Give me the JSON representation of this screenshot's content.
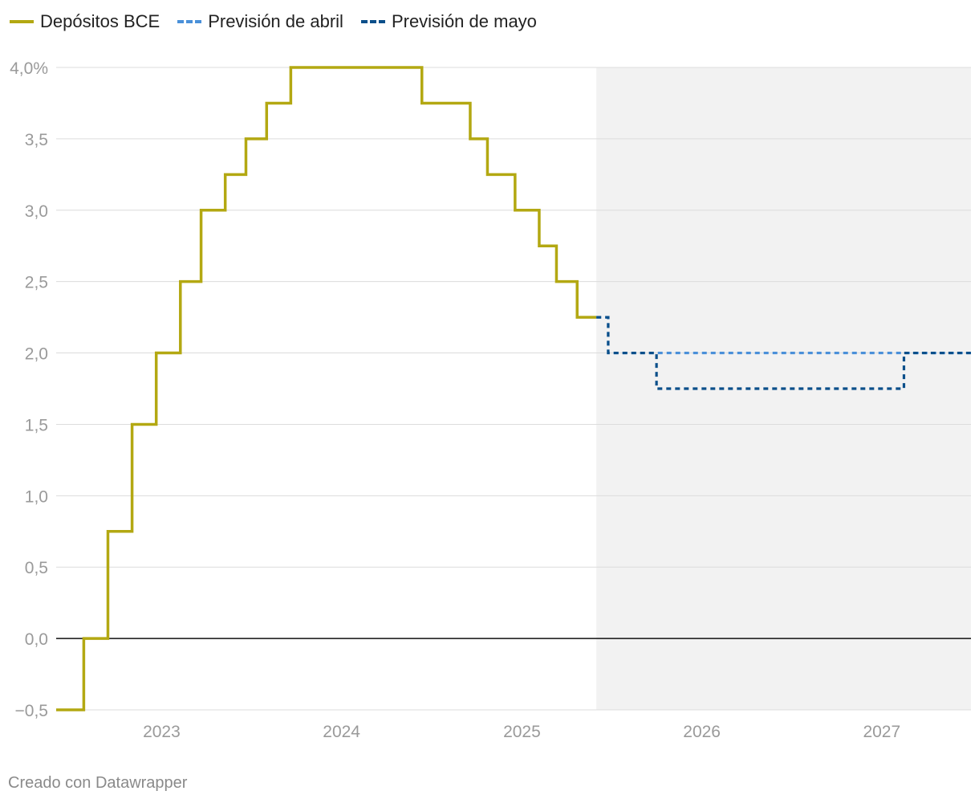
{
  "legend": {
    "items": [
      {
        "label": "Depósitos BCE",
        "color": "#b3a812",
        "style": "solid"
      },
      {
        "label": "Previsión de abril",
        "color": "#4a90d9",
        "style": "dashed"
      },
      {
        "label": "Previsión de mayo",
        "color": "#0b4f8a",
        "style": "dashed"
      }
    ]
  },
  "footer": {
    "credit": "Creado con Datawrapper"
  },
  "chart_data": {
    "type": "line",
    "title": "",
    "xlabel": "",
    "ylabel": "",
    "ylim": [
      -0.5,
      4.0
    ],
    "xlim": [
      "2022-06-01",
      "2027-07-01"
    ],
    "y_ticks": [
      {
        "value": 4.0,
        "label": "4,0%"
      },
      {
        "value": 3.5,
        "label": "3,5"
      },
      {
        "value": 3.0,
        "label": "3,0"
      },
      {
        "value": 2.5,
        "label": "2,5"
      },
      {
        "value": 2.0,
        "label": "2,0"
      },
      {
        "value": 1.5,
        "label": "1,5"
      },
      {
        "value": 1.0,
        "label": "1,0"
      },
      {
        "value": 0.5,
        "label": "0,5"
      },
      {
        "value": 0.0,
        "label": "0,0"
      },
      {
        "value": -0.5,
        "label": "−0,5"
      }
    ],
    "x_ticks": [
      {
        "date": "2023-01-01",
        "label": "2023"
      },
      {
        "date": "2024-01-01",
        "label": "2024"
      },
      {
        "date": "2025-01-01",
        "label": "2025"
      },
      {
        "date": "2026-01-01",
        "label": "2026"
      },
      {
        "date": "2027-01-01",
        "label": "2027"
      }
    ],
    "forecast_region": {
      "start": "2025-06-01",
      "end": "2027-07-01",
      "color": "#f2f2f2"
    },
    "grid": true,
    "legend_position": "top-left",
    "series": [
      {
        "name": "Depósitos BCE",
        "color": "#b3a812",
        "style": "solid",
        "step": true,
        "points": [
          {
            "x": "2022-06-01",
            "y": -0.5
          },
          {
            "x": "2022-07-27",
            "y": 0.0
          },
          {
            "x": "2022-09-14",
            "y": 0.75
          },
          {
            "x": "2022-11-02",
            "y": 1.5
          },
          {
            "x": "2022-12-21",
            "y": 2.0
          },
          {
            "x": "2023-02-08",
            "y": 2.5
          },
          {
            "x": "2023-03-22",
            "y": 3.0
          },
          {
            "x": "2023-05-10",
            "y": 3.25
          },
          {
            "x": "2023-06-21",
            "y": 3.5
          },
          {
            "x": "2023-08-02",
            "y": 3.75
          },
          {
            "x": "2023-09-20",
            "y": 4.0
          },
          {
            "x": "2024-06-12",
            "y": 3.75
          },
          {
            "x": "2024-09-18",
            "y": 3.5
          },
          {
            "x": "2024-10-23",
            "y": 3.25
          },
          {
            "x": "2024-12-18",
            "y": 3.0
          },
          {
            "x": "2025-02-05",
            "y": 2.75
          },
          {
            "x": "2025-03-12",
            "y": 2.5
          },
          {
            "x": "2025-04-23",
            "y": 2.25
          },
          {
            "x": "2025-06-01",
            "y": 2.25
          }
        ]
      },
      {
        "name": "Previsión de abril",
        "color": "#4a90d9",
        "style": "dashed",
        "step": true,
        "points": [
          {
            "x": "2025-06-01",
            "y": 2.25
          },
          {
            "x": "2025-06-25",
            "y": 2.0
          },
          {
            "x": "2027-07-01",
            "y": 2.0
          }
        ]
      },
      {
        "name": "Previsión de mayo",
        "color": "#0b4f8a",
        "style": "dashed",
        "step": true,
        "points": [
          {
            "x": "2025-06-01",
            "y": 2.25
          },
          {
            "x": "2025-06-25",
            "y": 2.0
          },
          {
            "x": "2025-10-01",
            "y": 1.75
          },
          {
            "x": "2027-02-15",
            "y": 2.0
          },
          {
            "x": "2027-07-01",
            "y": 2.0
          }
        ]
      }
    ]
  }
}
